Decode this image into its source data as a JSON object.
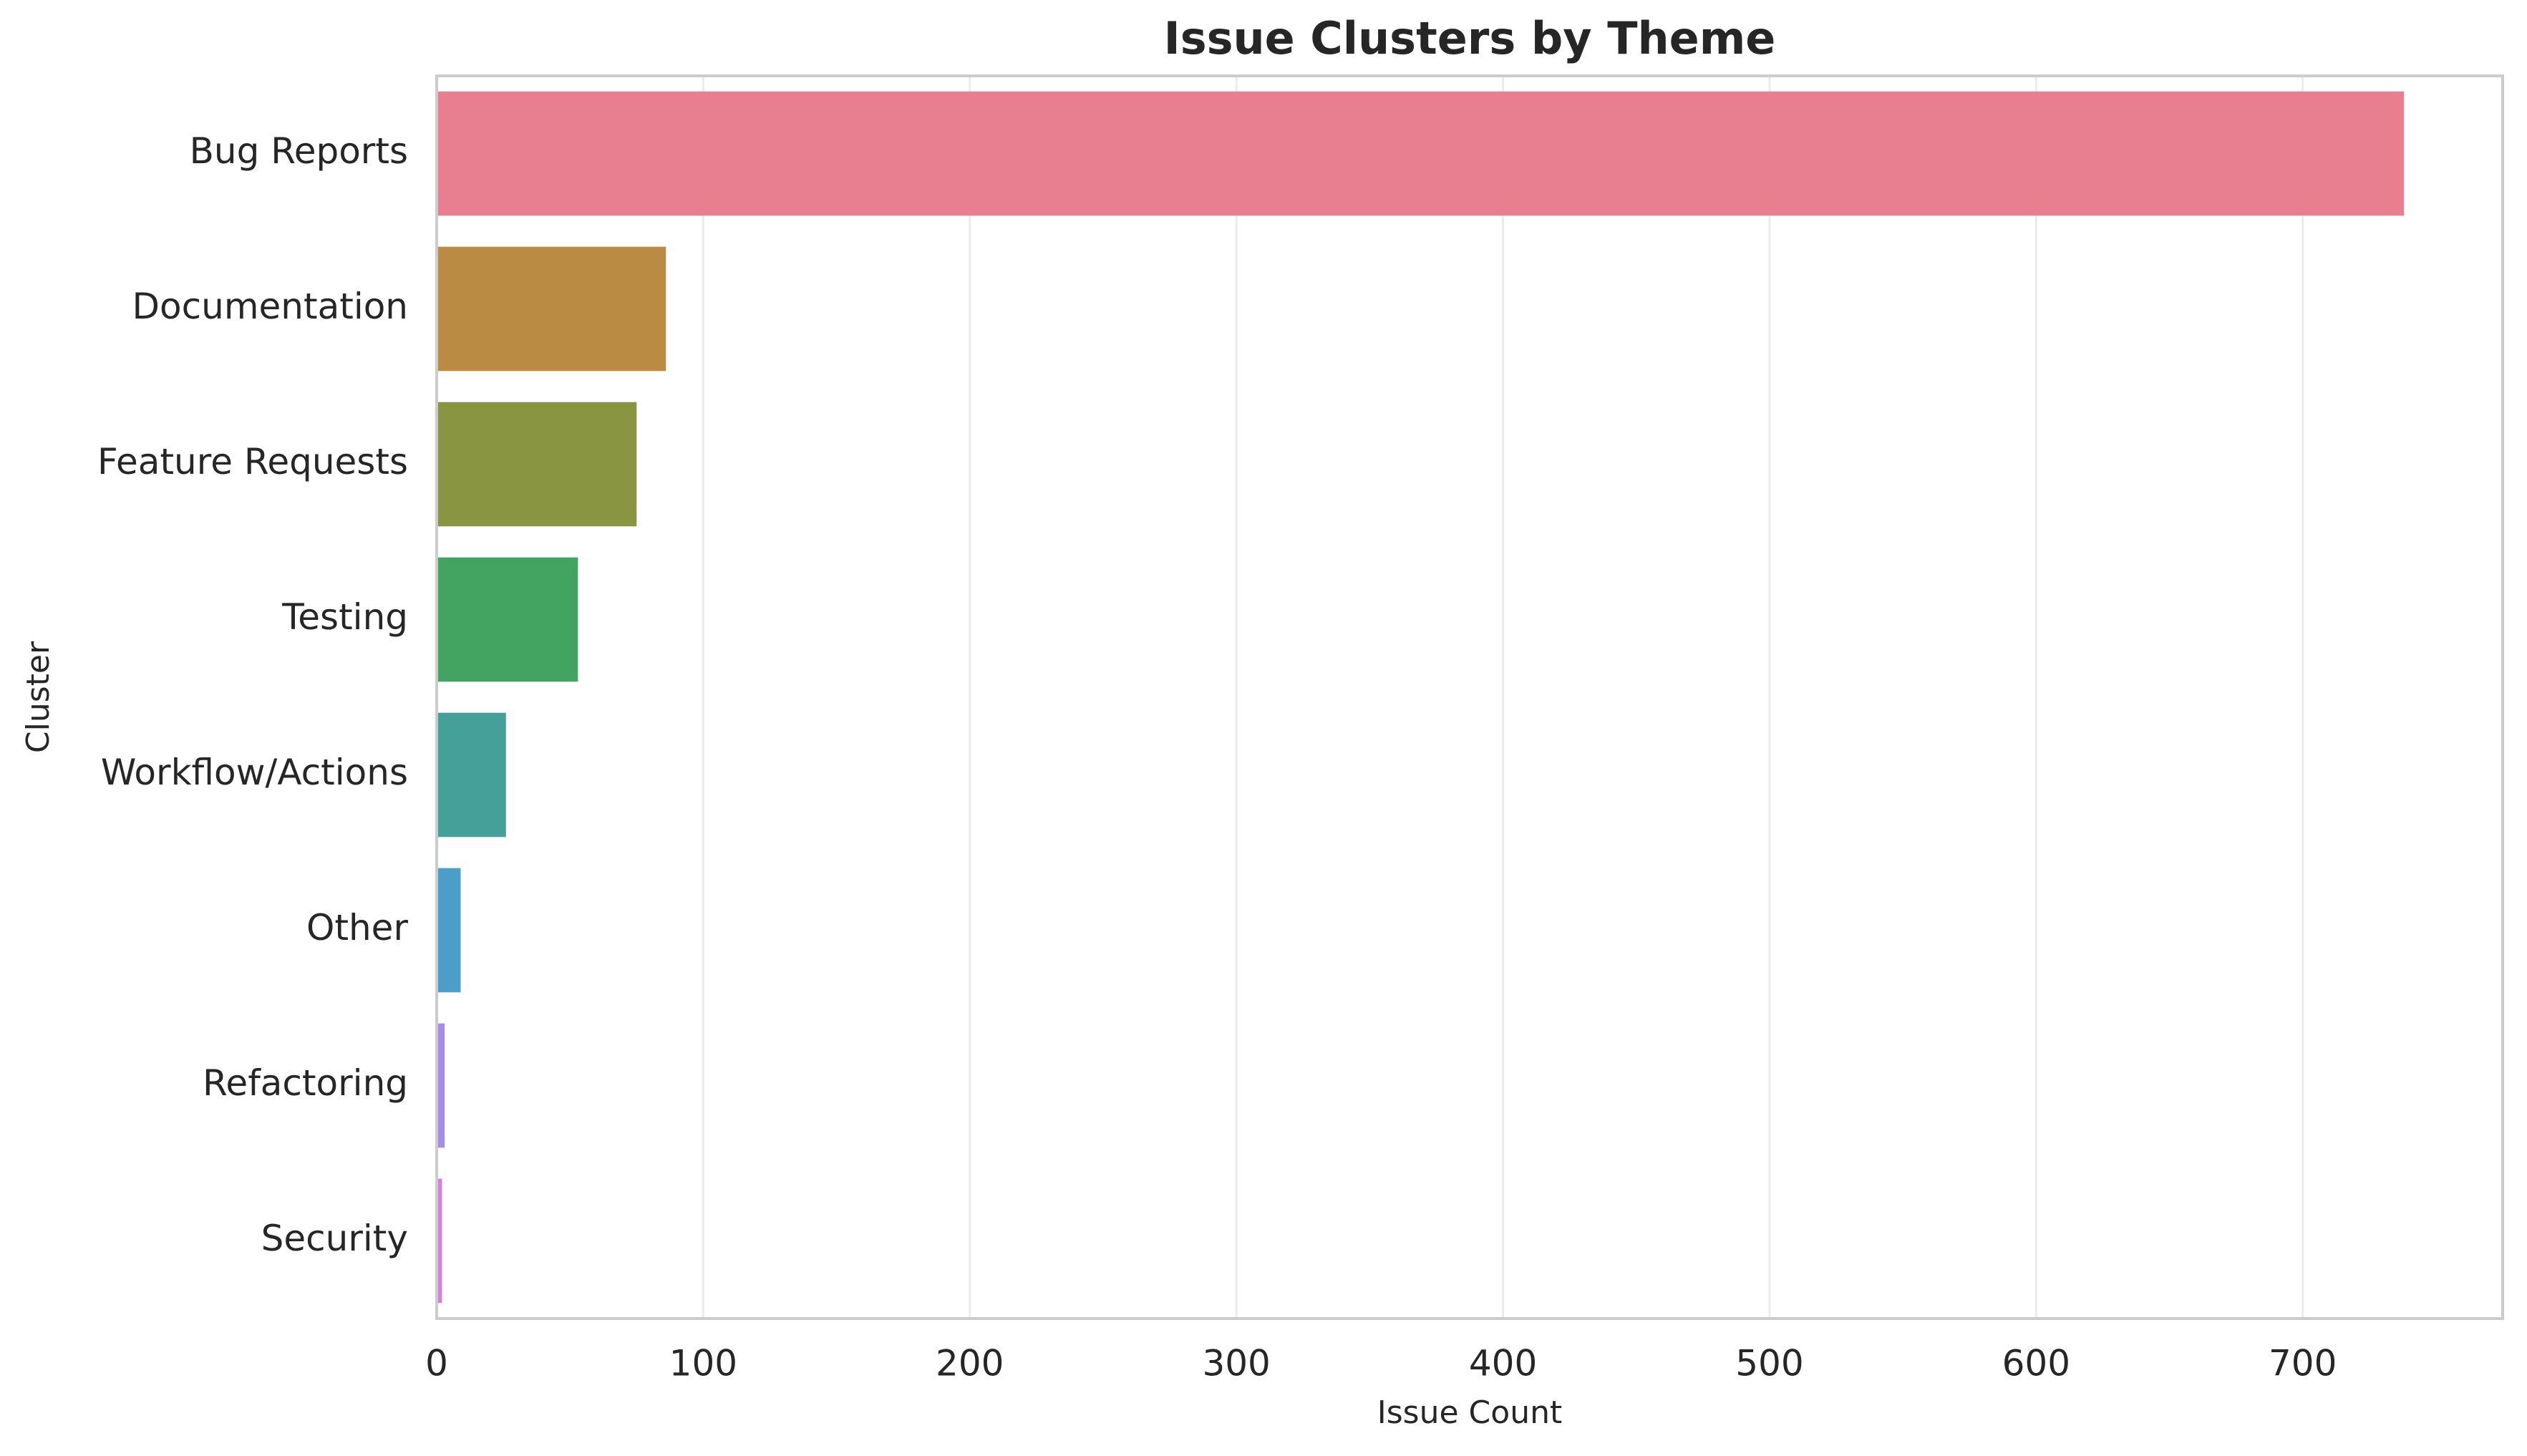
{
  "chart_data": {
    "type": "barh",
    "title": "Issue Clusters by Theme",
    "x_label": "Issue Count",
    "y_label": "Cluster",
    "categories": [
      "Bug Reports",
      "Documentation",
      "Feature Requests",
      "Testing",
      "Workflow/Actions",
      "Other",
      "Refactoring",
      "Security"
    ],
    "values": [
      738,
      86,
      75,
      53,
      26,
      9,
      3,
      2
    ],
    "colors": [
      "#e77f90",
      "#b98b43",
      "#8a9542",
      "#43a462",
      "#46a09a",
      "#4a9ec7",
      "#a38de6",
      "#d67ee0"
    ],
    "xlim": [
      0,
      775
    ],
    "xticks": [
      0,
      100,
      200,
      300,
      400,
      500,
      600,
      700
    ],
    "grid": true
  }
}
